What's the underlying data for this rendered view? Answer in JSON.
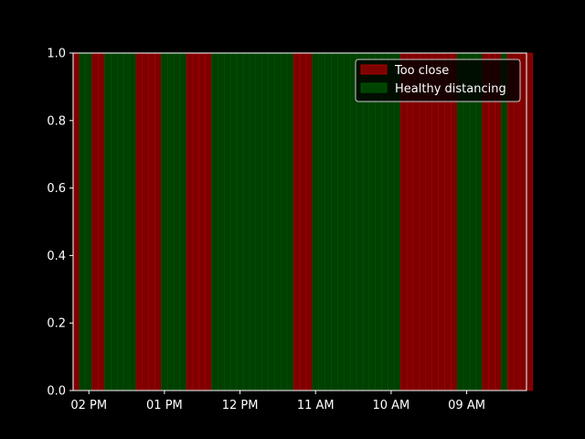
{
  "chart_data": {
    "type": "bar",
    "title": "",
    "xlabel": "",
    "ylabel": "",
    "ylim": [
      0,
      1
    ],
    "xlim": [
      -0.5,
      71.5
    ],
    "y_ticks": [
      "0.0",
      "0.2",
      "0.4",
      "0.6",
      "0.8",
      "1.0"
    ],
    "x_ticks": [
      {
        "label": "02 PM",
        "at": 2
      },
      {
        "label": "01 PM",
        "at": 14
      },
      {
        "label": "12 PM",
        "at": 26
      },
      {
        "label": "11 AM",
        "at": 38
      },
      {
        "label": "10 AM",
        "at": 50
      },
      {
        "label": "09 AM",
        "at": 62
      }
    ],
    "grid": false,
    "legend": {
      "placement": "top-right"
    },
    "series": [
      {
        "name": "Too close",
        "color": "#aa0000"
      },
      {
        "name": "Healthy distancing",
        "color": "#005500"
      }
    ],
    "segments": [
      {
        "series": 0,
        "count": 1
      },
      {
        "series": 1,
        "count": 2
      },
      {
        "series": 0,
        "count": 2
      },
      {
        "series": 1,
        "count": 5
      },
      {
        "series": 0,
        "count": 4
      },
      {
        "series": 1,
        "count": 4
      },
      {
        "series": 0,
        "count": 4
      },
      {
        "series": 1,
        "count": 13
      },
      {
        "series": 0,
        "count": 3
      },
      {
        "series": 1,
        "count": 14
      },
      {
        "series": 0,
        "count": 9
      },
      {
        "series": 1,
        "count": 4
      },
      {
        "series": 0,
        "count": 3
      },
      {
        "series": 1,
        "count": 1
      },
      {
        "series": 0,
        "count": 4
      }
    ],
    "bar_value": 1.0
  }
}
